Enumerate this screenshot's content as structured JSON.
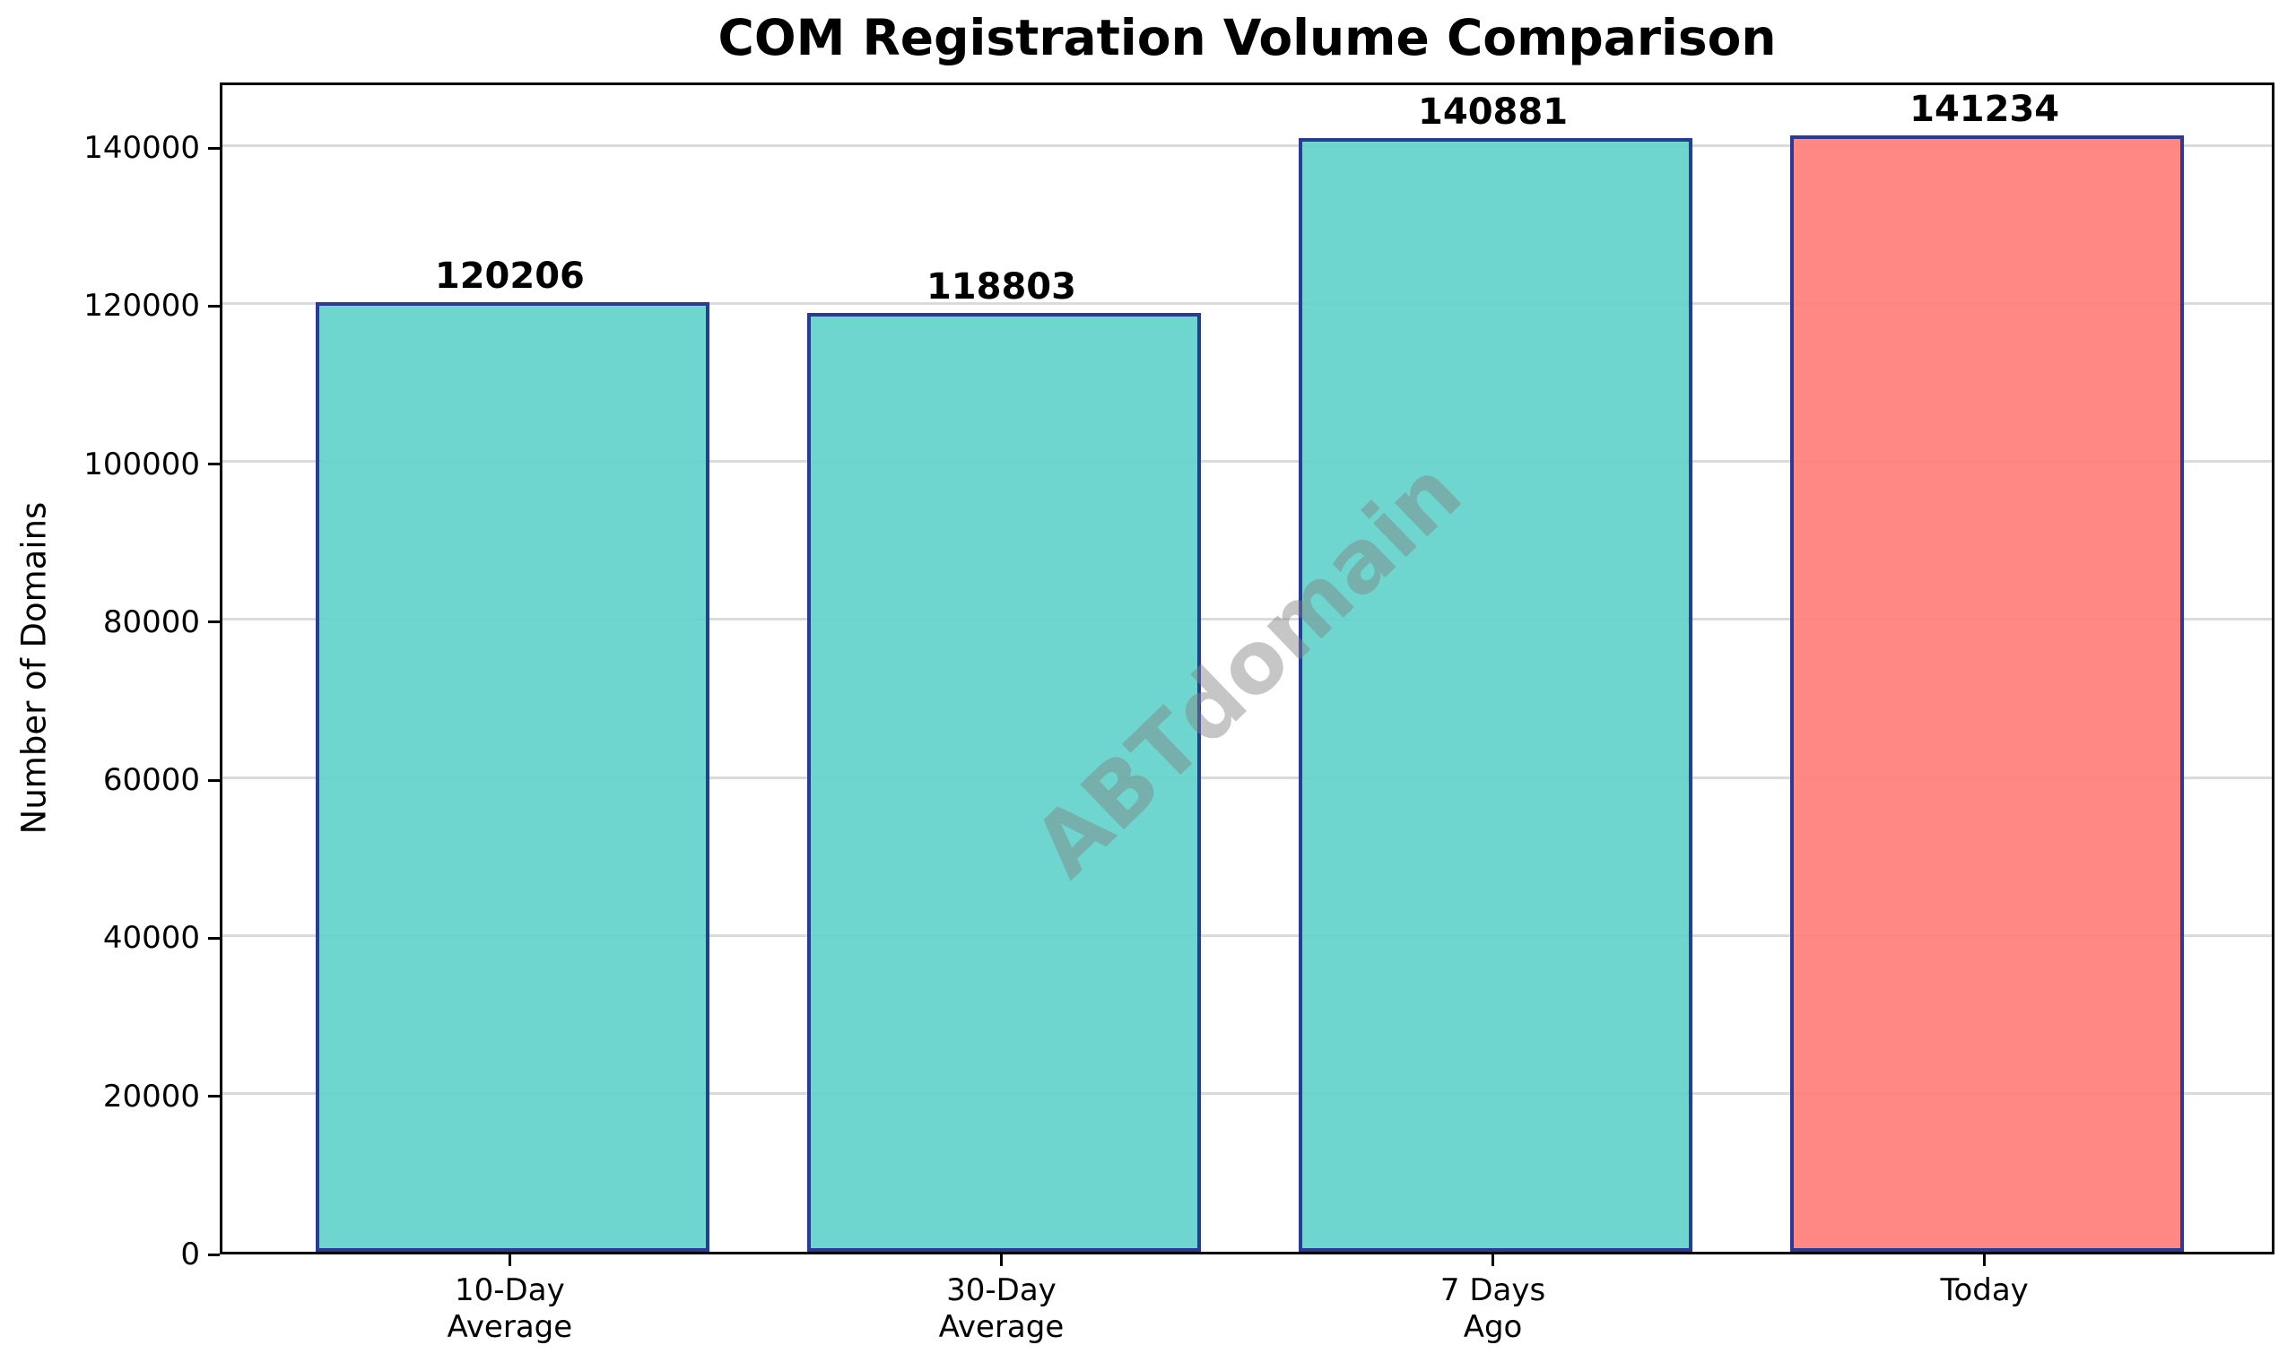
{
  "figure": {
    "title": "COM Registration Volume Comparison"
  },
  "chart_data": {
    "type": "bar",
    "title": "COM Registration Volume Comparison",
    "categories": [
      "10-Day\nAverage",
      "30-Day\nAverage",
      "7 Days\nAgo",
      "Today"
    ],
    "values": [
      120206,
      118803,
      140881,
      141234
    ],
    "value_labels": [
      "120206",
      "118803",
      "140881",
      "141234"
    ],
    "xlabel": "",
    "ylabel": "Number of Domains",
    "yticks": [
      0,
      20000,
      40000,
      60000,
      80000,
      100000,
      120000,
      140000
    ],
    "ylim": [
      0,
      148300
    ],
    "grid": "horizontal",
    "grid_color": "#DBDBDB",
    "legend_position": "none",
    "highlight_index": 3,
    "colors": {
      "bar_fill_teal": "#5ED2C9",
      "bar_fill_highlight": "#FF7B77",
      "bar_edge": "#2B3A97",
      "spine": "#000000",
      "text": "#000000",
      "watermark_gray": "#808080"
    },
    "watermark": "ABTdomain"
  }
}
